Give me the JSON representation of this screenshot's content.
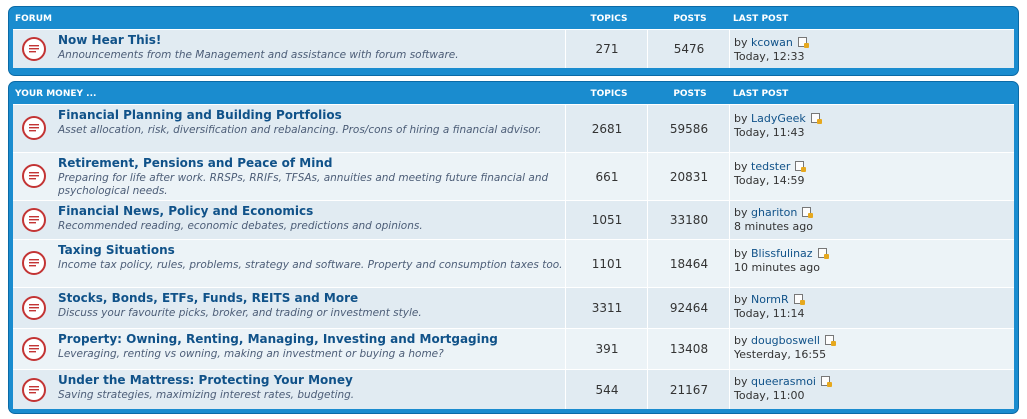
{
  "categories": [
    {
      "header": {
        "name": "FORUM",
        "topics": "TOPICS",
        "posts": "POSTS",
        "last_post": "LAST POST"
      },
      "forums": [
        {
          "title": "Now Hear This!",
          "desc": "Announcements from the Management and assistance with forum software.",
          "topics": "271",
          "posts": "5476",
          "by_label": "by",
          "last_user": "kcowan",
          "last_time": "Today, 12:33"
        }
      ]
    },
    {
      "header": {
        "name": "YOUR MONEY ...",
        "topics": "TOPICS",
        "posts": "POSTS",
        "last_post": "LAST POST"
      },
      "forums": [
        {
          "title": "Financial Planning and Building Portfolios",
          "desc": "Asset allocation, risk, diversification and rebalancing. Pros/cons of hiring a financial advisor.",
          "topics": "2681",
          "posts": "59586",
          "by_label": "by",
          "last_user": "LadyGeek",
          "last_time": "Today, 11:43"
        },
        {
          "title": "Retirement, Pensions and Peace of Mind",
          "desc": "Preparing for life after work. RRSPs, RRIFs, TFSAs, annuities and meeting future financial and psychological needs.",
          "topics": "661",
          "posts": "20831",
          "by_label": "by",
          "last_user": "tedster",
          "last_time": "Today, 14:59"
        },
        {
          "title": "Financial News, Policy and Economics",
          "desc": "Recommended reading, economic debates, predictions and opinions.",
          "topics": "1051",
          "posts": "33180",
          "by_label": "by",
          "last_user": "ghariton",
          "last_time": "8 minutes ago"
        },
        {
          "title": "Taxing Situations",
          "desc": "Income tax policy, rules, problems, strategy and software. Property and consumption taxes too.",
          "topics": "1101",
          "posts": "18464",
          "by_label": "by",
          "last_user": "Blissfulinaz",
          "last_time": "10 minutes ago"
        },
        {
          "title": "Stocks, Bonds, ETFs, Funds, REITS and More",
          "desc": "Discuss your favourite picks, broker, and trading or investment style.",
          "topics": "3311",
          "posts": "92464",
          "by_label": "by",
          "last_user": "NormR",
          "last_time": "Today, 11:14"
        },
        {
          "title": "Property: Owning, Renting, Managing, Investing and Mortgaging",
          "desc": "Leveraging, renting vs owning, making an investment or buying a home?",
          "topics": "391",
          "posts": "13408",
          "by_label": "by",
          "last_user": "dougboswell",
          "last_time": "Yesterday, 16:55"
        },
        {
          "title": "Under the Mattress: Protecting Your Money",
          "desc": "Saving strategies, maximizing interest rates, budgeting.",
          "topics": "544",
          "posts": "21167",
          "by_label": "by",
          "last_user": "queerasmoi",
          "last_time": "Today, 11:00"
        }
      ]
    }
  ]
}
